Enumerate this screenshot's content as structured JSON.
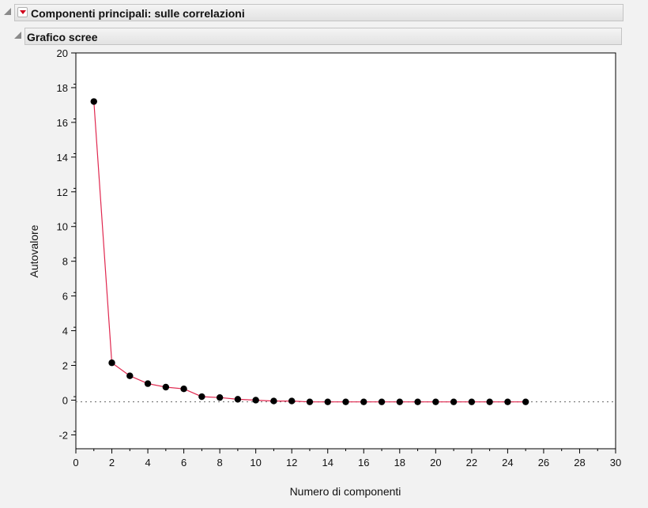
{
  "outline": {
    "section_title": "Componenti principali: sulle correlazioni",
    "subsection_title": "Grafico scree"
  },
  "chart_data": {
    "type": "line",
    "xlabel": "Numero di componenti",
    "ylabel": "Autovalore",
    "xlim": [
      0,
      30
    ],
    "ylim": [
      -2.8,
      20
    ],
    "x_ticks": [
      0,
      2,
      4,
      6,
      8,
      10,
      12,
      14,
      16,
      18,
      20,
      22,
      24,
      26,
      28,
      30
    ],
    "y_ticks": [
      -2,
      0,
      2,
      4,
      6,
      8,
      10,
      12,
      14,
      16,
      18,
      20
    ],
    "grid": false,
    "reference_line_y": -0.1,
    "line_color": "#e0284f",
    "marker_color": "#000000",
    "series": [
      {
        "x": [
          1,
          2,
          3,
          4,
          5,
          6,
          7,
          8,
          9,
          10,
          11,
          12,
          13,
          14,
          15,
          16,
          17,
          18,
          19,
          20,
          21,
          22,
          23,
          24,
          25
        ],
        "values": [
          17.2,
          2.15,
          1.4,
          0.95,
          0.75,
          0.65,
          0.2,
          0.15,
          0.05,
          0.0,
          -0.05,
          -0.05,
          -0.1,
          -0.1,
          -0.1,
          -0.1,
          -0.1,
          -0.1,
          -0.1,
          -0.1,
          -0.1,
          -0.1,
          -0.1,
          -0.1,
          -0.1
        ]
      }
    ]
  }
}
